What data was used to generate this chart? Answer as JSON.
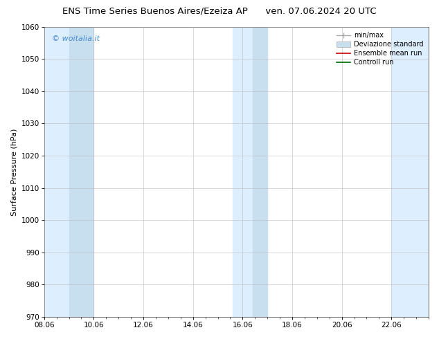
{
  "title_left": "ENS Time Series Buenos Aires/Ezeiza AP",
  "title_right": "ven. 07.06.2024 20 UTC",
  "ylabel": "Surface Pressure (hPa)",
  "ylim": [
    970,
    1060
  ],
  "yticks": [
    970,
    980,
    990,
    1000,
    1010,
    1020,
    1030,
    1040,
    1050,
    1060
  ],
  "xtick_labels": [
    "08.06",
    "10.06",
    "12.06",
    "14.06",
    "16.06",
    "18.06",
    "20.06",
    "22.06"
  ],
  "xtick_positions": [
    0,
    2,
    4,
    6,
    8,
    10,
    12,
    14
  ],
  "x_min": 0,
  "x_max": 15.5,
  "watermark": "© woitalia.it",
  "watermark_color": "#4488cc",
  "bg_color": "#ffffff",
  "plot_bg_color": "#ffffff",
  "shaded_bands": [
    {
      "x_start": -0.1,
      "x_end": 1.0,
      "color": "#ddeeff"
    },
    {
      "x_start": 1.0,
      "x_end": 2.0,
      "color": "#c8dff0"
    },
    {
      "x_start": 7.6,
      "x_end": 8.4,
      "color": "#ddeeff"
    },
    {
      "x_start": 8.4,
      "x_end": 9.0,
      "color": "#c8dff0"
    },
    {
      "x_start": 14.0,
      "x_end": 15.5,
      "color": "#ddeeff"
    }
  ],
  "legend_items": [
    {
      "label": "min/max",
      "color": "#aaaaaa",
      "lw": 1.0,
      "style": "minmax"
    },
    {
      "label": "Deviazione standard",
      "color": "#c8dff0",
      "lw": 5,
      "style": "band"
    },
    {
      "label": "Ensemble mean run",
      "color": "#cc0000",
      "lw": 1.2,
      "style": "line"
    },
    {
      "label": "Controll run",
      "color": "#006600",
      "lw": 1.2,
      "style": "line"
    }
  ],
  "font_size_title": 9.5,
  "font_size_tick": 7.5,
  "font_size_ylabel": 8,
  "font_size_watermark": 8,
  "font_size_legend": 7
}
